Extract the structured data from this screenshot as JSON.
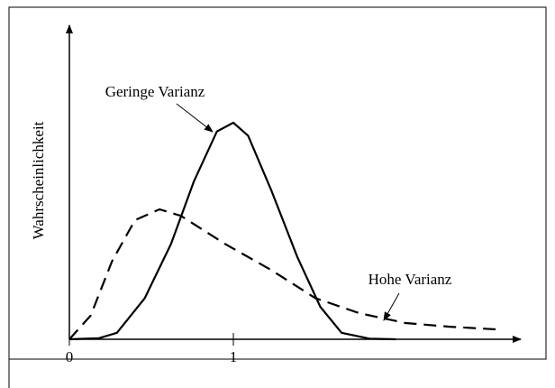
{
  "chart_data": {
    "type": "line",
    "y_label": "Wahrscheinlichkeit",
    "xlim": [
      0,
      2.74
    ],
    "ylim": [
      0,
      1.45
    ],
    "xticks": [
      0,
      1
    ],
    "grid": false,
    "series": [
      {
        "name": "Geringe Varianz",
        "color": "#000000",
        "dash": false,
        "x": [
          0,
          0.18,
          0.29,
          0.46,
          0.62,
          0.76,
          0.9,
          1.0,
          1.09,
          1.23,
          1.39,
          1.53,
          1.66,
          1.83,
          1.99
        ],
        "values": [
          0,
          0.005,
          0.03,
          0.19,
          0.44,
          0.73,
          0.96,
          1.0,
          0.94,
          0.69,
          0.38,
          0.15,
          0.03,
          0.003,
          0
        ]
      },
      {
        "name": "Hohe Varianz",
        "color": "#000000",
        "dash": true,
        "x": [
          0,
          0.13,
          0.26,
          0.4,
          0.55,
          0.68,
          0.95,
          1.23,
          1.5,
          1.77,
          2.05,
          2.32,
          2.6
        ],
        "values": [
          0,
          0.11,
          0.36,
          0.55,
          0.6,
          0.57,
          0.44,
          0.32,
          0.19,
          0.12,
          0.075,
          0.058,
          0.046
        ]
      }
    ]
  }
}
